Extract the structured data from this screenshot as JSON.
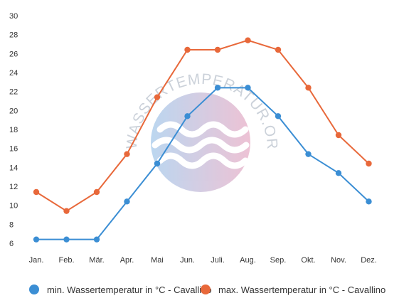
{
  "chart_data": {
    "type": "line",
    "categories": [
      "Jan.",
      "Feb.",
      "Mär.",
      "Apr.",
      "Mai",
      "Jun.",
      "Juli.",
      "Aug.",
      "Sep.",
      "Okt.",
      "Nov.",
      "Dez."
    ],
    "series": [
      {
        "name": "min. Wassertemperatur in °C - Cavallino",
        "color": "#3b8ed4",
        "values": [
          6.4,
          6.4,
          6.4,
          10.4,
          14.4,
          19.4,
          22.4,
          22.4,
          19.4,
          15.4,
          13.4,
          10.4
        ]
      },
      {
        "name": "max. Wassertemperatur in °C - Cavallino",
        "color": "#e8683a",
        "values": [
          11.4,
          9.4,
          11.4,
          15.4,
          21.4,
          26.4,
          26.4,
          27.4,
          26.4,
          22.4,
          17.4,
          14.4
        ]
      }
    ],
    "yticks": [
      6,
      8,
      10,
      12,
      14,
      16,
      18,
      20,
      22,
      24,
      26,
      28,
      30
    ],
    "ylim": [
      5,
      30
    ],
    "grid": false,
    "legend": "bottom",
    "xlabel": "",
    "ylabel": ""
  },
  "watermark": {
    "text": "WASSERTEMPERATUR.ORG",
    "icon": "wave-circle-icon"
  }
}
